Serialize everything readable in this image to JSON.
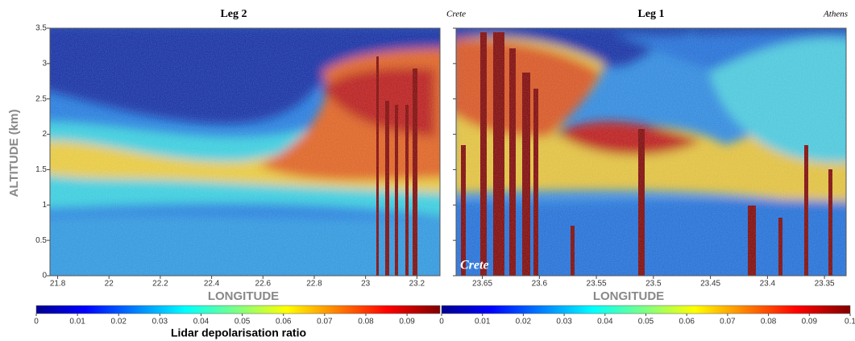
{
  "chart_data": [
    {
      "type": "heatmap",
      "title": "Leg 2",
      "xlabel": "LONGITUDE",
      "ylabel": "ALTITUDE (km)",
      "xlim": [
        21.77,
        23.29
      ],
      "xticks": [
        21.8,
        22,
        22.2,
        22.4,
        22.6,
        22.8,
        23,
        23.2
      ],
      "ylim": [
        0,
        3.5
      ],
      "yticks": [
        0,
        0.5,
        1,
        1.5,
        2,
        2.5,
        3,
        3.5
      ],
      "colorbar": {
        "label": "Lidar depolarisation ratio",
        "lim": [
          0,
          0.098
        ],
        "ticks": [
          0,
          0.01,
          0.02,
          0.03,
          0.04,
          0.05,
          0.06,
          0.07,
          0.08,
          0.09
        ]
      }
    },
    {
      "type": "heatmap",
      "title": "Leg 1",
      "annotations": [
        "Crete",
        "Athens",
        "Crete"
      ],
      "xlabel": "LONGITUDE",
      "xlim": [
        23.673,
        23.331
      ],
      "xticks": [
        23.65,
        23.6,
        23.55,
        23.5,
        23.45,
        23.4,
        23.35
      ],
      "ylim": [
        0,
        3.5
      ],
      "yticks": [
        0,
        0.5,
        1,
        1.5,
        2,
        2.5,
        3,
        3.5
      ],
      "colorbar": {
        "lim": [
          0,
          0.1
        ],
        "ticks": [
          0,
          0.01,
          0.02,
          0.03,
          0.04,
          0.05,
          0.06,
          0.07,
          0.08,
          0.09,
          0.1
        ]
      }
    }
  ]
}
